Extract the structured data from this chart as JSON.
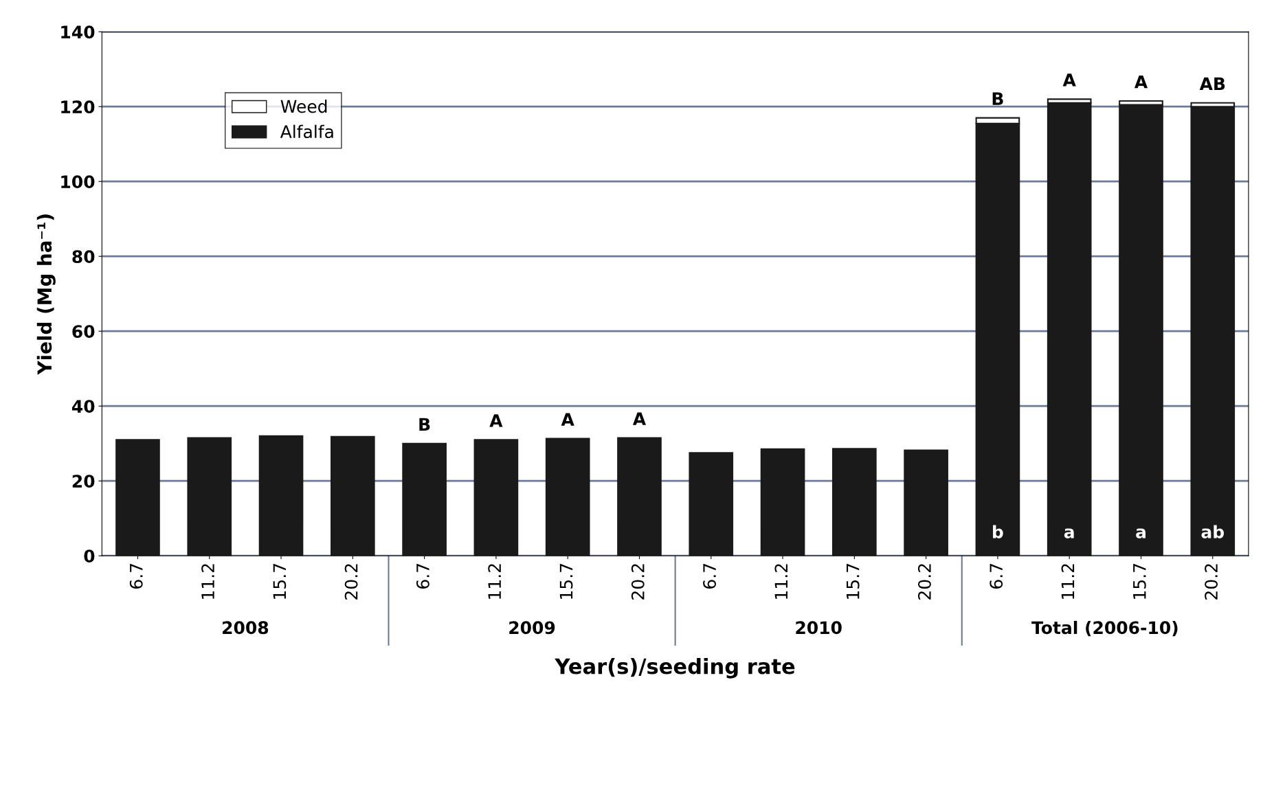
{
  "chart_data": {
    "type": "bar",
    "stacked": true,
    "xlabel": "Year(s)/seeding rate",
    "ylabel": "Yield (Mg ha⁻¹)",
    "categories": [
      "6.7",
      "11.2",
      "15.7",
      "20.2",
      "6.7",
      "11.2",
      "15.7",
      "20.2",
      "6.7",
      "11.2",
      "15.7",
      "20.2",
      "6.7",
      "11.2",
      "15.7",
      "20.2"
    ],
    "series": [
      {
        "name": "Alfalfa",
        "color": "#1a1a1a",
        "values": [
          31,
          31.5,
          32,
          31.8,
          30,
          31,
          31.3,
          31.5,
          27.5,
          28.5,
          28.6,
          28.2,
          115.5,
          121,
          120.5,
          120
        ],
        "value_labels": [
          null,
          null,
          null,
          null,
          null,
          null,
          null,
          null,
          null,
          null,
          null,
          null,
          "b",
          "a",
          "a",
          "ab"
        ]
      },
      {
        "name": "Weed",
        "color": "#ffffff",
        "values": [
          null,
          null,
          null,
          null,
          null,
          null,
          null,
          null,
          null,
          null,
          null,
          null,
          1.5,
          1,
          1,
          1
        ],
        "value_labels": [
          null,
          null,
          null,
          null,
          "B",
          "A",
          "A",
          "A",
          null,
          null,
          null,
          null,
          "B",
          "A",
          "A",
          "AB"
        ]
      }
    ],
    "annotations": [
      "2008",
      "2009",
      "2010",
      "Total (2006-10)"
    ],
    "ylim": [
      0,
      140
    ],
    "yticks": [
      0,
      20,
      40,
      60,
      80,
      100,
      120,
      140
    ],
    "grid": "y",
    "legend": "top left"
  }
}
